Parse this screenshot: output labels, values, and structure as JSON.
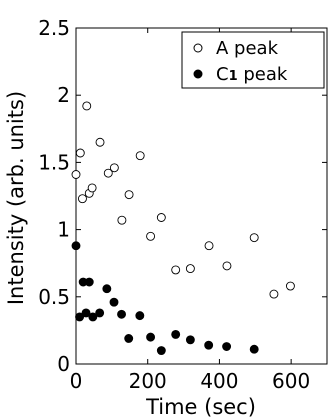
{
  "chart_data": {
    "type": "scatter",
    "title": "",
    "xlabel": "Time (sec)",
    "ylabel": "Intensity (arb. units)",
    "xlim": [
      0,
      700
    ],
    "ylim": [
      0,
      2.5
    ],
    "xticks": [
      0,
      200,
      400,
      600
    ],
    "yticks": [
      0,
      0.5,
      1,
      1.5,
      2,
      2.5
    ],
    "xtick_labels": [
      "0",
      "200",
      "400",
      "600"
    ],
    "ytick_labels": [
      "0",
      "0.5",
      "1",
      "1.5",
      "2",
      "2.5"
    ],
    "grid": false,
    "legend_position": "top-right",
    "series": [
      {
        "name": "A peak",
        "marker": "open-circle",
        "color": "#000000",
        "x": [
          0,
          12,
          18,
          30,
          37,
          45,
          67,
          90,
          107,
          128,
          148,
          179,
          208,
          238,
          278,
          319,
          371,
          421,
          497,
          552,
          598
        ],
        "y": [
          1.41,
          1.57,
          1.23,
          1.92,
          1.27,
          1.31,
          1.65,
          1.42,
          1.46,
          1.07,
          1.26,
          1.55,
          0.95,
          1.09,
          0.7,
          0.71,
          0.88,
          0.73,
          0.94,
          0.52,
          0.58
        ]
      },
      {
        "name_prefix": "C",
        "name_sub": "1",
        "name_suffix": " peak",
        "marker": "filled-circle",
        "color": "#000000",
        "x": [
          0,
          10,
          20,
          28,
          37,
          47,
          66,
          86,
          106,
          127,
          147,
          178,
          208,
          238,
          278,
          319,
          370,
          420,
          497
        ],
        "y": [
          0.88,
          0.35,
          0.61,
          0.38,
          0.61,
          0.35,
          0.38,
          0.56,
          0.46,
          0.37,
          0.19,
          0.36,
          0.2,
          0.1,
          0.22,
          0.18,
          0.14,
          0.13,
          0.11
        ]
      }
    ]
  }
}
